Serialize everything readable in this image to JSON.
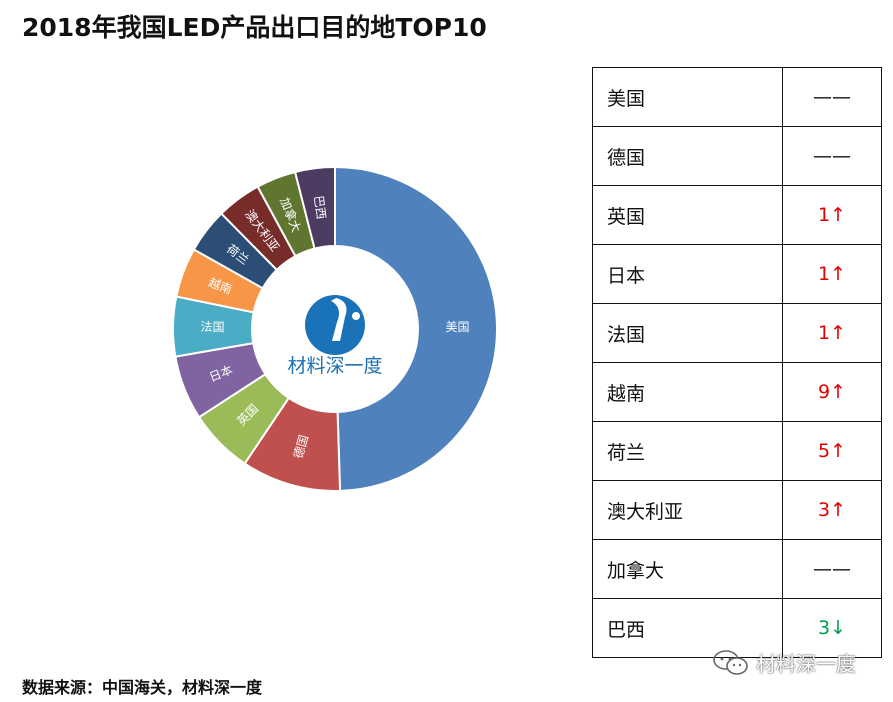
{
  "title": "2018年我国LED产品出口目的地TOP10",
  "source_note": "数据来源：中国海关，材料深一度",
  "logo": {
    "text": "材料深一度",
    "color": "#1a72b8",
    "icon": "logo-mark"
  },
  "watermark": {
    "text": "材料深一度",
    "icon": "wechat-icon"
  },
  "chart_data": {
    "type": "pie",
    "style": "donut",
    "categories": [
      "美国",
      "德国",
      "英国",
      "日本",
      "法国",
      "越南",
      "荷兰",
      "澳大利亚",
      "加拿大",
      "巴西"
    ],
    "values": [
      50,
      10,
      6.5,
      6.5,
      6,
      5,
      4.5,
      4.5,
      4,
      4
    ],
    "colors": [
      "#4f81bd",
      "#c0504d",
      "#9bbb59",
      "#8064a2",
      "#4bacc6",
      "#f79646",
      "#2c4d75",
      "#772c2a",
      "#5f7530",
      "#4d3b62"
    ],
    "labels_inside": true
  },
  "ranking_table": {
    "rows": [
      {
        "country": "美国",
        "change": "——",
        "trend": "same"
      },
      {
        "country": "德国",
        "change": "——",
        "trend": "same"
      },
      {
        "country": "英国",
        "change": "1↑",
        "trend": "up"
      },
      {
        "country": "日本",
        "change": "1↑",
        "trend": "up"
      },
      {
        "country": "法国",
        "change": "1↑",
        "trend": "up"
      },
      {
        "country": "越南",
        "change": "9↑",
        "trend": "up"
      },
      {
        "country": "荷兰",
        "change": "5↑",
        "trend": "up"
      },
      {
        "country": "澳大利亚",
        "change": "3↑",
        "trend": "up"
      },
      {
        "country": "加拿大",
        "change": "——",
        "trend": "same"
      },
      {
        "country": "巴西",
        "change": "3↓",
        "trend": "down"
      }
    ],
    "colors": {
      "up": "#e00000",
      "down": "#00a050",
      "same": "#111111"
    }
  }
}
